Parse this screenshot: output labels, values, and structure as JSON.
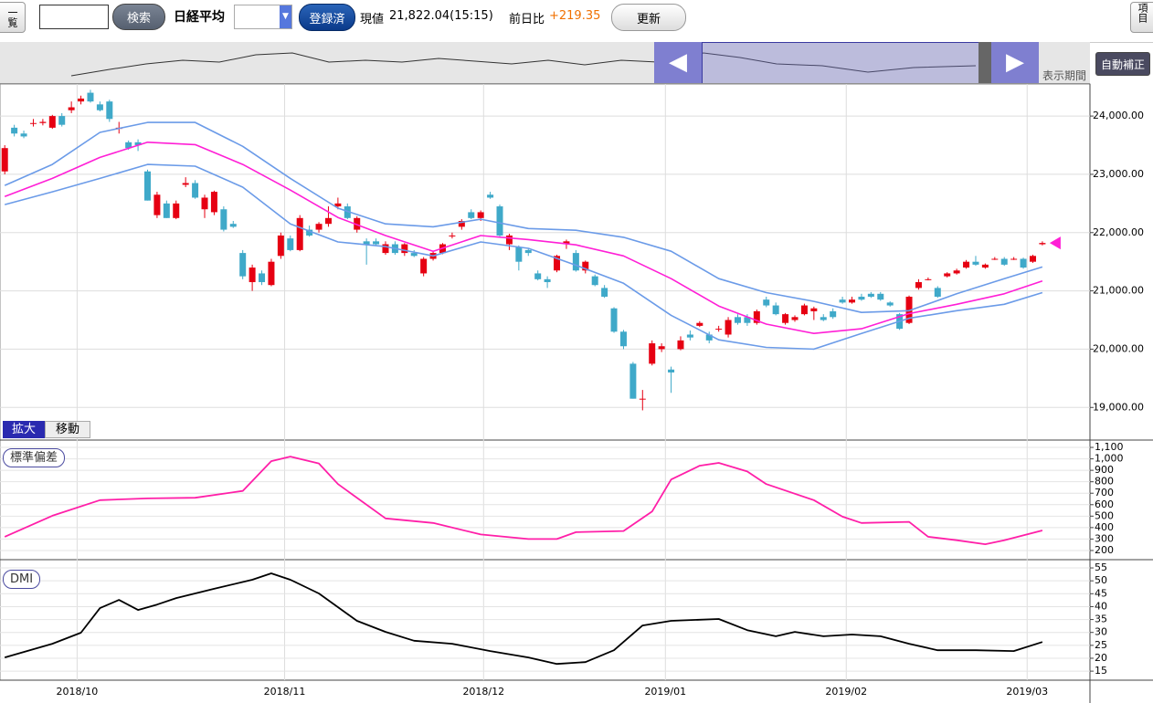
{
  "toolbar": {
    "list_button": "一覧",
    "search_button": "検索",
    "symbol": "日経平均",
    "registered_button": "登録済",
    "price_label": "現値",
    "price": "21,822.04(15:15)",
    "change_label": "前日比",
    "change": "+219.35",
    "refresh_button": "更新",
    "items_button": "項目"
  },
  "navigator": {
    "period_label": "表示期間",
    "auto_button": "自動補正"
  },
  "zoom_tabs": [
    "拡大",
    "移動"
  ],
  "chart_data": [
    {
      "type": "candlestick",
      "up_color": "#e60012",
      "down_color": "#3fa9c9",
      "xlim": [
        -0.5,
        114
      ],
      "ylim": [
        18440,
        24550
      ],
      "yticks": [
        {
          "value": 19000,
          "label": "19,000.00"
        },
        {
          "value": 20000,
          "label": "20,000.00"
        },
        {
          "value": 21000,
          "label": "21,000.00"
        },
        {
          "value": 22000,
          "label": "22,000.00"
        },
        {
          "value": 23000,
          "label": "23,000.00"
        },
        {
          "value": 24000,
          "label": "24,000.00"
        }
      ],
      "xticks": [
        {
          "value": 7.6,
          "label": "2018/10"
        },
        {
          "value": 29.4,
          "label": "2018/11"
        },
        {
          "value": 50.3,
          "label": "2018/12"
        },
        {
          "value": 69.4,
          "label": "2019/01"
        },
        {
          "value": 88.4,
          "label": "2019/02"
        },
        {
          "value": 107.4,
          "label": "2019/03"
        }
      ],
      "grid": true,
      "ohlc": [
        [
          23050,
          23500,
          23000,
          23450
        ],
        [
          23800,
          23850,
          23650,
          23700
        ],
        [
          23700,
          23750,
          23620,
          23650
        ],
        [
          23870,
          23950,
          23820,
          23880
        ],
        [
          23880,
          23950,
          23840,
          23900
        ],
        [
          23800,
          24020,
          23780,
          24000
        ],
        [
          24000,
          24050,
          23820,
          23850
        ],
        [
          24100,
          24250,
          24050,
          24150
        ],
        [
          24250,
          24350,
          24200,
          24300
        ],
        [
          24400,
          24450,
          24230,
          24250
        ],
        [
          24200,
          24250,
          24080,
          24100
        ],
        [
          24250,
          24280,
          23900,
          23950
        ],
        [
          23780,
          23900,
          23700,
          23800
        ],
        [
          23550,
          23580,
          23420,
          23450
        ],
        [
          23550,
          23600,
          23400,
          23500
        ],
        [
          23050,
          23080,
          22550,
          22550
        ],
        [
          22300,
          22700,
          22250,
          22650
        ],
        [
          22500,
          22550,
          22250,
          22250
        ],
        [
          22250,
          22550,
          22230,
          22500
        ],
        [
          22820,
          22950,
          22780,
          22850
        ],
        [
          22850,
          22900,
          22580,
          22600
        ],
        [
          22400,
          22650,
          22250,
          22600
        ],
        [
          22350,
          22720,
          22300,
          22700
        ],
        [
          22400,
          22450,
          22020,
          22050
        ],
        [
          22150,
          22200,
          22080,
          22100
        ],
        [
          21650,
          21700,
          21200,
          21250
        ],
        [
          21150,
          21450,
          21000,
          21400
        ],
        [
          21300,
          21350,
          21100,
          21150
        ],
        [
          21100,
          21550,
          21080,
          21500
        ],
        [
          21600,
          22000,
          21550,
          21950
        ],
        [
          21900,
          21950,
          21680,
          21700
        ],
        [
          21700,
          22300,
          21680,
          22250
        ],
        [
          22050,
          22120,
          21930,
          21950
        ],
        [
          22050,
          22180,
          22000,
          22150
        ],
        [
          22150,
          22450,
          22100,
          22250
        ],
        [
          22450,
          22600,
          22400,
          22500
        ],
        [
          22450,
          22500,
          22230,
          22250
        ],
        [
          22050,
          22280,
          22000,
          22250
        ],
        [
          21850,
          21900,
          21450,
          21800
        ],
        [
          21850,
          21900,
          21780,
          21800
        ],
        [
          21650,
          21850,
          21620,
          21800
        ],
        [
          21800,
          21850,
          21620,
          21650
        ],
        [
          21650,
          21820,
          21600,
          21800
        ],
        [
          21650,
          21700,
          21580,
          21600
        ],
        [
          21300,
          21580,
          21250,
          21550
        ],
        [
          21550,
          21680,
          21520,
          21650
        ],
        [
          21650,
          21820,
          21630,
          21800
        ],
        [
          21950,
          22000,
          21900,
          21950
        ],
        [
          22100,
          22230,
          22050,
          22200
        ],
        [
          22350,
          22400,
          22230,
          22250
        ],
        [
          22250,
          22380,
          22200,
          22350
        ],
        [
          22650,
          22700,
          22580,
          22600
        ],
        [
          22450,
          22480,
          21930,
          21950
        ],
        [
          21800,
          21980,
          21700,
          21950
        ],
        [
          21750,
          21780,
          21350,
          21500
        ],
        [
          21700,
          21720,
          21600,
          21650
        ],
        [
          21300,
          21350,
          21180,
          21200
        ],
        [
          21200,
          21250,
          21050,
          21150
        ],
        [
          21350,
          21620,
          21320,
          21600
        ],
        [
          21800,
          21880,
          21720,
          21850
        ],
        [
          21650,
          21700,
          21330,
          21350
        ],
        [
          21350,
          21520,
          21300,
          21500
        ],
        [
          21250,
          21280,
          21080,
          21100
        ],
        [
          21050,
          21100,
          20880,
          20900
        ],
        [
          20700,
          20720,
          20280,
          20300
        ],
        [
          20300,
          20330,
          20000,
          20050
        ],
        [
          19750,
          19780,
          19150,
          19150
        ],
        [
          19150,
          19300,
          18950,
          19150
        ],
        [
          19750,
          20150,
          19720,
          20100
        ],
        [
          20000,
          20100,
          19950,
          20050
        ],
        [
          19650,
          19700,
          19250,
          19600
        ],
        [
          20000,
          20220,
          19980,
          20150
        ],
        [
          20250,
          20320,
          20150,
          20200
        ],
        [
          20400,
          20480,
          20380,
          20450
        ],
        [
          20250,
          20300,
          20100,
          20150
        ],
        [
          20350,
          20400,
          20300,
          20350
        ],
        [
          20250,
          20550,
          20200,
          20500
        ],
        [
          20550,
          20600,
          20420,
          20450
        ],
        [
          20550,
          20600,
          20400,
          20450
        ],
        [
          20450,
          20680,
          20420,
          20650
        ],
        [
          20850,
          20900,
          20720,
          20750
        ],
        [
          20750,
          20800,
          20580,
          20600
        ],
        [
          20450,
          20620,
          20420,
          20600
        ],
        [
          20500,
          20580,
          20470,
          20550
        ],
        [
          20600,
          20780,
          20580,
          20750
        ],
        [
          20650,
          20730,
          20500,
          20700
        ],
        [
          20550,
          20600,
          20480,
          20500
        ],
        [
          20650,
          20700,
          20520,
          20550
        ],
        [
          20850,
          20900,
          20780,
          20800
        ],
        [
          20800,
          20900,
          20780,
          20850
        ],
        [
          20900,
          20950,
          20830,
          20850
        ],
        [
          20950,
          20980,
          20880,
          20900
        ],
        [
          20950,
          20980,
          20830,
          20850
        ],
        [
          20800,
          20820,
          20730,
          20750
        ],
        [
          20600,
          20620,
          20330,
          20350
        ],
        [
          20450,
          20920,
          20430,
          20900
        ],
        [
          21050,
          21200,
          21020,
          21150
        ],
        [
          21200,
          21230,
          21180,
          21200
        ],
        [
          21050,
          21080,
          20880,
          20900
        ],
        [
          21250,
          21320,
          21230,
          21300
        ],
        [
          21300,
          21380,
          21280,
          21350
        ],
        [
          21400,
          21530,
          21380,
          21500
        ],
        [
          21500,
          21600,
          21430,
          21450
        ],
        [
          21400,
          21470,
          21380,
          21450
        ],
        [
          21550,
          21580,
          21530,
          21550
        ],
        [
          21550,
          21580,
          21430,
          21450
        ],
        [
          21550,
          21580,
          21530,
          21550
        ],
        [
          21550,
          21570,
          21380,
          21400
        ],
        [
          21500,
          21620,
          21480,
          21600
        ],
        [
          21800,
          21850,
          21780,
          21822
        ]
      ],
      "series": [
        {
          "color": "#6b9be8",
          "x": [
            0,
            5,
            10,
            15,
            20,
            25,
            30,
            35,
            40,
            45,
            50,
            55,
            60,
            65,
            70,
            75,
            80,
            85,
            90,
            95,
            100,
            105,
            109
          ],
          "values": [
            22810,
            23170,
            23720,
            23890,
            23890,
            23480,
            22930,
            22420,
            22150,
            22100,
            22230,
            22070,
            22040,
            21920,
            21680,
            21210,
            20970,
            20820,
            20630,
            20660,
            20950,
            21210,
            21410
          ]
        },
        {
          "color": "#ff1fd6",
          "x": [
            0,
            5,
            10,
            15,
            20,
            25,
            30,
            35,
            40,
            45,
            50,
            55,
            60,
            65,
            70,
            75,
            80,
            85,
            90,
            95,
            100,
            105,
            109
          ],
          "values": [
            22620,
            22930,
            23290,
            23550,
            23510,
            23170,
            22730,
            22260,
            21950,
            21680,
            21950,
            21880,
            21790,
            21600,
            21210,
            20740,
            20430,
            20270,
            20350,
            20610,
            20770,
            20950,
            21170
          ]
        },
        {
          "color": "#6b9be8",
          "x": [
            0,
            5,
            10,
            15,
            20,
            25,
            30,
            35,
            40,
            45,
            50,
            55,
            60,
            65,
            70,
            75,
            80,
            85,
            90,
            95,
            100,
            105,
            109
          ],
          "values": [
            22480,
            22700,
            22930,
            23170,
            23140,
            22780,
            22150,
            21840,
            21760,
            21600,
            21840,
            21730,
            21440,
            21130,
            20580,
            20160,
            20030,
            20000,
            20270,
            20530,
            20660,
            20770,
            20970
          ]
        }
      ]
    },
    {
      "type": "line",
      "title": "標準偏差",
      "xlim": [
        -0.5,
        114
      ],
      "ylim": [
        120,
        1164
      ],
      "yticks": [
        200,
        300,
        400,
        500,
        600,
        700,
        800,
        900,
        {
          "value": 1000,
          "label": "1,000"
        },
        {
          "value": 1100,
          "label": "1,100"
        }
      ],
      "series": [
        {
          "color": "#ff1fa8",
          "x": [
            0,
            5,
            10,
            15,
            20,
            25,
            28,
            30,
            33,
            35,
            40,
            45,
            50,
            55,
            58,
            60,
            65,
            68,
            70,
            73,
            75,
            78,
            80,
            85,
            88,
            90,
            95,
            97,
            100,
            103,
            105,
            109
          ],
          "values": [
            320,
            503,
            640,
            655,
            660,
            720,
            980,
            1020,
            960,
            780,
            480,
            440,
            340,
            300,
            300,
            360,
            370,
            540,
            820,
            940,
            965,
            890,
            780,
            640,
            495,
            440,
            450,
            320,
            290,
            255,
            290,
            375
          ]
        }
      ]
    },
    {
      "type": "line",
      "title": "DMI",
      "xlim": [
        -0.5,
        114
      ],
      "ylim": [
        11.5,
        58.2
      ],
      "yticks": [
        15,
        20,
        25,
        30,
        35,
        40,
        45,
        50,
        55
      ],
      "series": [
        {
          "color": "#000000",
          "x": [
            0,
            5,
            8,
            10,
            12,
            14,
            16,
            18,
            22,
            26,
            28,
            30,
            33,
            37,
            40,
            43,
            47,
            51,
            55,
            58,
            61,
            64,
            67,
            70,
            75,
            78,
            81,
            83,
            86,
            89,
            92,
            95,
            98,
            102,
            106,
            109
          ],
          "values": [
            20.3,
            25.6,
            29.9,
            39.4,
            42.6,
            38.7,
            40.8,
            43.3,
            46.9,
            50.4,
            52.9,
            50.4,
            45.1,
            34.5,
            30.2,
            26.8,
            25.6,
            22.8,
            20.3,
            17.8,
            18.5,
            23.1,
            32.7,
            34.5,
            35.2,
            30.9,
            28.5,
            30.2,
            28.5,
            29.2,
            28.5,
            25.6,
            23.1,
            23.1,
            22.8,
            26.3
          ]
        }
      ]
    }
  ]
}
